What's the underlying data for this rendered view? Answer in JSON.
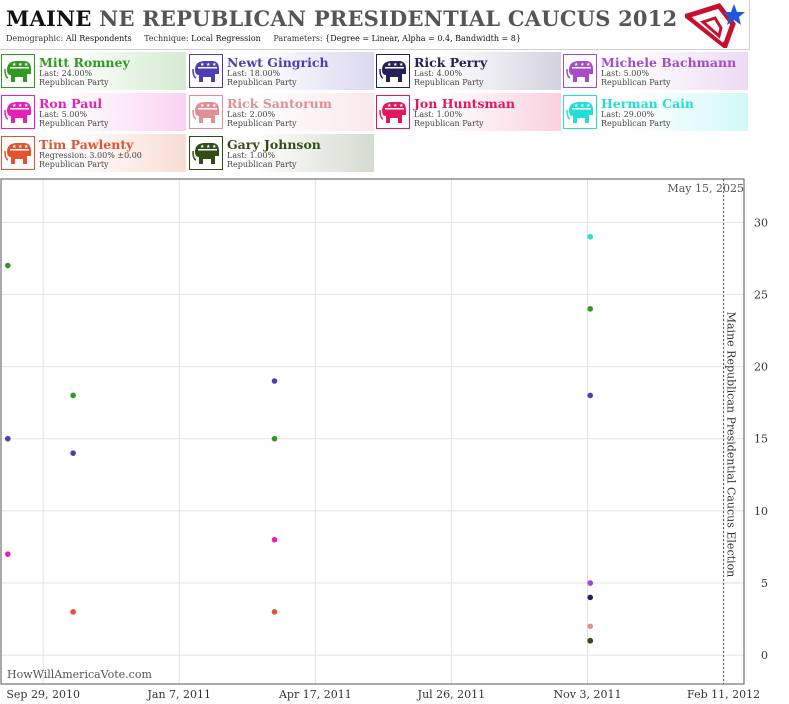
{
  "header": {
    "state": "MAINE",
    "race": "NE REPUBLICAN PRESIDENTIAL CAUCUS 2012",
    "demographic_label": "Demographic:",
    "demographic_value": "All Respondents",
    "technique_label": "Technique:",
    "technique_value": "Local Regression",
    "parameters_label": "Parameters:",
    "parameters_value": "{Degree = Linear, Alpha = 0.4, Bandwidth = 8}",
    "logo_icon": "star-flag-logo-icon",
    "logo_colors": [
      "#c8102e",
      "#1e5bd8"
    ]
  },
  "legend": [
    {
      "name": "Mitt Romney",
      "stat": "Last: 24.00%",
      "party": "Republican Party",
      "color": "#2e9a1f"
    },
    {
      "name": "Newt Gingrich",
      "stat": "Last: 18.00%",
      "party": "Republican Party",
      "color": "#4a3fb5"
    },
    {
      "name": "Rick Perry",
      "stat": "Last: 4.00%",
      "party": "Republican Party",
      "color": "#24205a"
    },
    {
      "name": "Michele Bachmann",
      "stat": "Last: 5.00%",
      "party": "Republican Party",
      "color": "#a64ac9"
    },
    {
      "name": "Ron Paul",
      "stat": "Last: 5.00%",
      "party": "Republican Party",
      "color": "#e61fb8"
    },
    {
      "name": "Rick Santorum",
      "stat": "Last: 2.00%",
      "party": "Republican Party",
      "color": "#e08f95"
    },
    {
      "name": "Jon Huntsman",
      "stat": "Last: 1.00%",
      "party": "Republican Party",
      "color": "#e3175e"
    },
    {
      "name": "Herman Cain",
      "stat": "Last: 29.00%",
      "party": "Republican Party",
      "color": "#22e0d8"
    },
    {
      "name": "Tim Pawlenty",
      "stat": "Regression: 3.00% ±0.00",
      "party": "Republican Party",
      "color": "#e0552f"
    },
    {
      "name": "Gary Johnson",
      "stat": "Last: 1.00%",
      "party": "Republican Party",
      "color": "#2f4d14"
    }
  ],
  "legend_icon": "republican-elephant-icon",
  "watermark": "HowWillAmericaVote.com",
  "as_of": "May 15, 2025",
  "chart_data": {
    "type": "scatter",
    "x_ticks": [
      "Sep 29, 2010",
      "Jan 7, 2011",
      "Apr 17, 2011",
      "Jul 26, 2011",
      "Nov 3, 2011",
      "Feb 11, 2012"
    ],
    "y_ticks": [
      0,
      5,
      10,
      15,
      20,
      25,
      30
    ],
    "ylim": [
      -2,
      33
    ],
    "xlim": [
      "2010-08-29",
      "2012-02-26"
    ],
    "grid": true,
    "event_line": {
      "date": "2012-02-11",
      "label": "Maine Republican Presidential Caucus Election"
    },
    "series": [
      {
        "name": "Mitt Romney",
        "color": "#2e9a1f",
        "points": [
          [
            "2010-09-03",
            27
          ],
          [
            "2010-10-21",
            18
          ],
          [
            "2011-03-18",
            15
          ],
          [
            "2011-11-05",
            24
          ]
        ]
      },
      {
        "name": "Newt Gingrich",
        "color": "#4a3fb5",
        "points": [
          [
            "2010-09-03",
            15
          ],
          [
            "2010-10-21",
            14
          ],
          [
            "2011-03-18",
            19
          ],
          [
            "2011-11-05",
            18
          ]
        ]
      },
      {
        "name": "Ron Paul",
        "color": "#e61fb8",
        "points": [
          [
            "2010-09-03",
            7
          ],
          [
            "2011-03-18",
            8
          ],
          [
            "2011-11-05",
            5
          ]
        ]
      },
      {
        "name": "Tim Pawlenty",
        "color": "#e0552f",
        "points": [
          [
            "2010-10-21",
            3
          ],
          [
            "2011-03-18",
            3
          ]
        ]
      },
      {
        "name": "Herman Cain",
        "color": "#22e0d8",
        "points": [
          [
            "2011-11-05",
            29
          ]
        ]
      },
      {
        "name": "Michele Bachmann",
        "color": "#a64ac9",
        "points": [
          [
            "2011-11-05",
            5
          ]
        ]
      },
      {
        "name": "Rick Perry",
        "color": "#24205a",
        "points": [
          [
            "2011-11-05",
            4
          ]
        ]
      },
      {
        "name": "Rick Santorum",
        "color": "#e08f95",
        "points": [
          [
            "2011-11-05",
            2
          ]
        ]
      },
      {
        "name": "Jon Huntsman",
        "color": "#e3175e",
        "points": [
          [
            "2011-11-05",
            1
          ]
        ]
      },
      {
        "name": "Gary Johnson",
        "color": "#2f4d14",
        "points": [
          [
            "2011-11-05",
            1
          ]
        ]
      }
    ]
  }
}
